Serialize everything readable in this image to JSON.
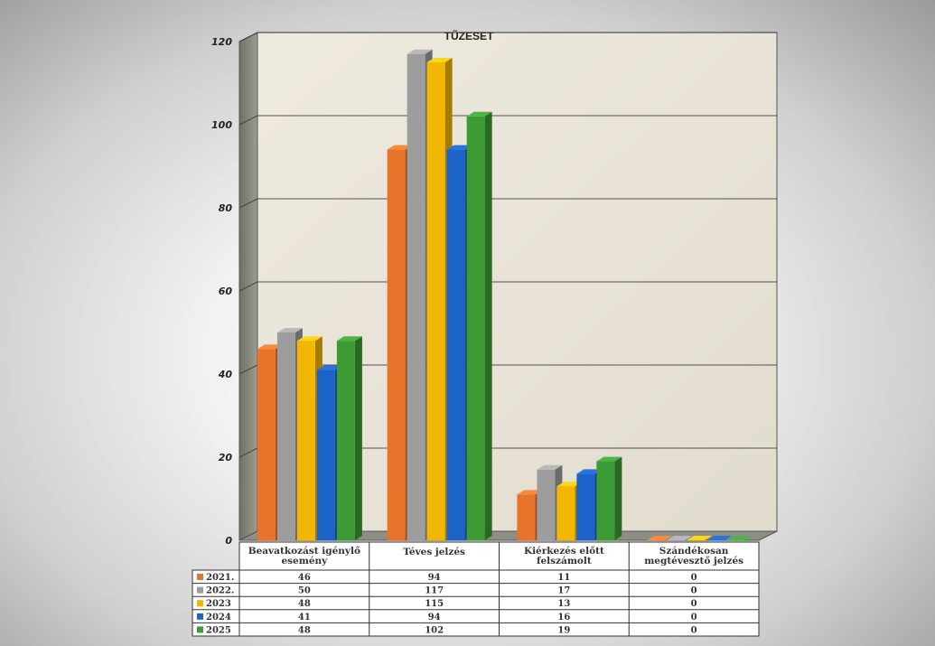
{
  "chart_data": {
    "type": "bar",
    "title": "TŰZESET",
    "ylim": [
      0,
      120
    ],
    "yticks": [
      "0",
      "20",
      "40",
      "60",
      "80",
      "100",
      "120"
    ],
    "categories": [
      [
        "Beavatkozást igénylő",
        "esemény"
      ],
      [
        "Téves jelzés"
      ],
      [
        "Kiérkezés előtt",
        "felszámolt"
      ],
      [
        "Szándékosan",
        "megtévesztő jelzés"
      ]
    ],
    "series": [
      {
        "name": "2021.",
        "color": "#e8742b",
        "values": [
          46,
          94,
          11,
          0
        ]
      },
      {
        "name": "2022.",
        "color": "#9d9d9d",
        "values": [
          50,
          117,
          17,
          0
        ]
      },
      {
        "name": "2023",
        "color": "#f2b705",
        "values": [
          48,
          115,
          13,
          0
        ]
      },
      {
        "name": "2024",
        "color": "#1c62c7",
        "values": [
          41,
          94,
          16,
          0
        ]
      },
      {
        "name": "2025",
        "color": "#3d9b35",
        "values": [
          48,
          102,
          19,
          0
        ]
      }
    ],
    "grid": true,
    "legend": "data-table-below"
  }
}
